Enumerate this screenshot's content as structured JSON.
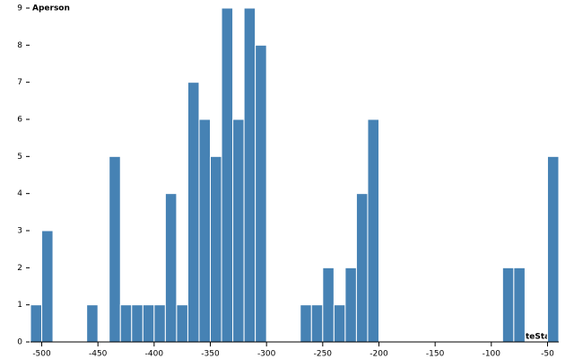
{
  "chart_data": {
    "type": "histogram",
    "color": "#4682b4",
    "x_label": "dateStart",
    "y_label": "Aperson",
    "bins": [
      -510,
      -500,
      -490,
      -480,
      -470,
      -460,
      -450,
      -440,
      -430,
      -420,
      -410,
      -400,
      -390,
      -380,
      -370,
      -360,
      -350,
      -340,
      -330,
      -320,
      -310,
      -300,
      -290,
      -280,
      -270,
      -260,
      -250,
      -240,
      -230,
      -220,
      -210,
      -200,
      -190,
      -180,
      -170,
      -160,
      -150,
      -140,
      -130,
      -120,
      -110,
      -100,
      -90,
      -80,
      -70,
      -60,
      -50,
      -40
    ],
    "values": [
      1,
      3,
      0,
      0,
      0,
      1,
      0,
      5,
      1,
      1,
      1,
      1,
      4,
      1,
      7,
      6,
      5,
      9,
      6,
      9,
      8,
      0,
      0,
      0,
      1,
      1,
      2,
      1,
      2,
      4,
      6,
      0,
      0,
      0,
      0,
      0,
      0,
      0,
      0,
      0,
      0,
      0,
      2,
      2,
      0,
      0,
      5
    ],
    "xlim": [
      -510,
      -40
    ],
    "xticks": [
      -500,
      -450,
      -400,
      -350,
      -300,
      -250,
      -200,
      -150,
      -100,
      -50
    ],
    "ylim": [
      0,
      9
    ],
    "yticks": [
      0,
      1,
      2,
      3,
      4,
      5,
      6,
      7,
      8,
      9
    ]
  }
}
